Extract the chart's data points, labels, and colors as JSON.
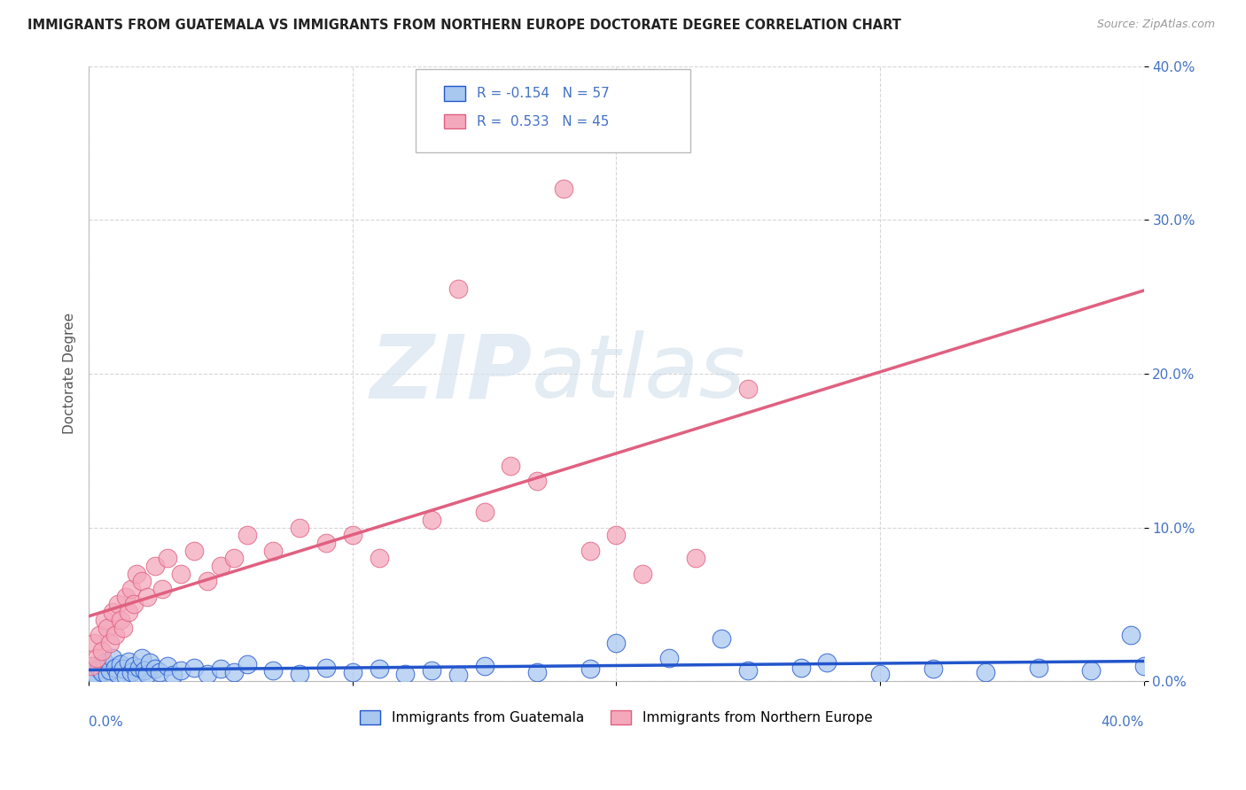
{
  "title": "IMMIGRANTS FROM GUATEMALA VS IMMIGRANTS FROM NORTHERN EUROPE DOCTORATE DEGREE CORRELATION CHART",
  "source": "Source: ZipAtlas.com",
  "ylabel": "Doctorate Degree",
  "ytick_vals": [
    0,
    10,
    20,
    30,
    40
  ],
  "xlim": [
    0,
    40
  ],
  "ylim": [
    0,
    40
  ],
  "watermark_zip": "ZIP",
  "watermark_atlas": "atlas",
  "legend_text1": "R = -0.154   N = 57",
  "legend_text2": "R =  0.533   N = 45",
  "color_guatemala": "#A8C8F0",
  "color_n_europe": "#F4A8BC",
  "color_line_guatemala": "#2255CC",
  "color_line_n_europe": "#E06080",
  "color_tick_label": "#4472C4",
  "guatemala_x": [
    0.1,
    0.2,
    0.3,
    0.4,
    0.5,
    0.6,
    0.7,
    0.8,
    0.9,
    1.0,
    1.1,
    1.2,
    1.3,
    1.4,
    1.5,
    1.6,
    1.7,
    1.8,
    1.9,
    2.0,
    2.1,
    2.2,
    2.3,
    2.5,
    2.7,
    3.0,
    3.2,
    3.5,
    4.0,
    4.5,
    5.0,
    5.5,
    6.0,
    7.0,
    8.0,
    9.0,
    10.0,
    11.0,
    12.0,
    13.0,
    14.0,
    15.0,
    17.0,
    19.0,
    20.0,
    22.0,
    24.0,
    25.0,
    27.0,
    28.0,
    30.0,
    32.0,
    34.0,
    36.0,
    38.0,
    39.5,
    40.0
  ],
  "guatemala_y": [
    0.5,
    1.0,
    0.3,
    0.8,
    0.6,
    1.2,
    0.4,
    0.7,
    1.5,
    0.9,
    0.5,
    1.1,
    0.8,
    0.3,
    1.3,
    0.6,
    1.0,
    0.4,
    0.9,
    1.5,
    0.7,
    0.5,
    1.2,
    0.8,
    0.6,
    1.0,
    0.4,
    0.7,
    0.9,
    0.5,
    0.8,
    0.6,
    1.1,
    0.7,
    0.5,
    0.9,
    0.6,
    0.8,
    0.5,
    0.7,
    0.4,
    1.0,
    0.6,
    0.8,
    2.5,
    1.5,
    2.8,
    0.7,
    0.9,
    1.2,
    0.5,
    0.8,
    0.6,
    0.9,
    0.7,
    3.0,
    1.0
  ],
  "n_europe_x": [
    0.1,
    0.2,
    0.3,
    0.4,
    0.5,
    0.6,
    0.7,
    0.8,
    0.9,
    1.0,
    1.1,
    1.2,
    1.3,
    1.4,
    1.5,
    1.6,
    1.7,
    1.8,
    2.0,
    2.2,
    2.5,
    2.8,
    3.0,
    3.5,
    4.0,
    4.5,
    5.0,
    5.5,
    6.0,
    7.0,
    8.0,
    9.0,
    10.0,
    11.0,
    13.0,
    15.0,
    17.0,
    19.0,
    21.0,
    23.0,
    25.0,
    14.0,
    16.0,
    18.0,
    20.0
  ],
  "n_europe_y": [
    1.0,
    2.5,
    1.5,
    3.0,
    2.0,
    4.0,
    3.5,
    2.5,
    4.5,
    3.0,
    5.0,
    4.0,
    3.5,
    5.5,
    4.5,
    6.0,
    5.0,
    7.0,
    6.5,
    5.5,
    7.5,
    6.0,
    8.0,
    7.0,
    8.5,
    6.5,
    7.5,
    8.0,
    9.5,
    8.5,
    10.0,
    9.0,
    9.5,
    8.0,
    10.5,
    11.0,
    13.0,
    8.5,
    7.0,
    8.0,
    19.0,
    25.5,
    14.0,
    32.0,
    9.5
  ]
}
